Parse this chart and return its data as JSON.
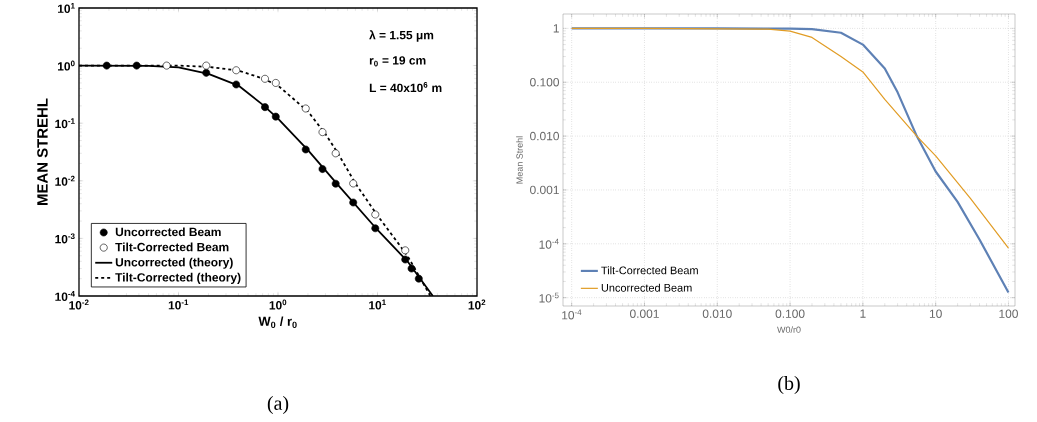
{
  "chart_data": [
    {
      "type": "scatter",
      "title": "(a)",
      "xlabel": "W$_{0}$ / r$_{0}$",
      "ylabel": "MEAN STREHL",
      "log": "xy",
      "grid": false,
      "legend": "bottom left",
      "xlim": [
        0.01,
        100
      ],
      "ylim": [
        0.0001,
        10
      ],
      "xticks": [
        {
          "value": 0.01,
          "label": "10$^{-2}$"
        },
        {
          "value": 0.1,
          "label": "10$^{-1}$"
        },
        {
          "value": 1,
          "label": "10$^{0}$"
        },
        {
          "value": 10,
          "label": "10$^{1}$"
        },
        {
          "value": 100,
          "label": "10$^{2}$"
        }
      ],
      "yticks": [
        {
          "value": 0.0001,
          "label": "10$^{-4}$"
        },
        {
          "value": 0.001,
          "label": "10$^{-3}$"
        },
        {
          "value": 0.01,
          "label": "10$^{-2}$"
        },
        {
          "value": 0.1,
          "label": "10$^{-1}$"
        },
        {
          "value": 1,
          "label": "10$^{0}$"
        },
        {
          "value": 10,
          "label": "10$^{1}$"
        }
      ],
      "annotations": [
        "λ = 1.55 μm",
        "r$_{0}$ = 19 cm",
        "L = 40x10$^{6}$ m"
      ],
      "series": [
        {
          "name": "Uncorrected Beam",
          "type": "scatter",
          "marker": "circle",
          "color": "#000000",
          "x": [
            0.019,
            0.038,
            0.19,
            0.38,
            0.74,
            0.95,
            1.9,
            2.8,
            3.8,
            5.7,
            9.5,
            19,
            22,
            26
          ],
          "values": [
            1,
            1,
            0.75,
            0.47,
            0.19,
            0.13,
            0.035,
            0.016,
            0.0089,
            0.0042,
            0.0015,
            0.00043,
            0.0003,
            0.0002
          ]
        },
        {
          "name": "Tilt-Corrected Beam",
          "type": "scatter",
          "marker": "circle",
          "color": "#ffffff",
          "x": [
            0.076,
            0.19,
            0.38,
            0.74,
            0.95,
            1.9,
            2.8,
            3.8,
            5.7,
            9.5,
            19
          ],
          "values": [
            1,
            1,
            0.83,
            0.59,
            0.5,
            0.18,
            0.07,
            0.03,
            0.009,
            0.0026,
            0.00062
          ]
        },
        {
          "name": "Uncorrected (theory)",
          "type": "line",
          "marker": "none",
          "line_style": "solid",
          "color": "#000000",
          "x": [
            0.01,
            0.05,
            0.1,
            0.2,
            0.4,
            0.7,
            1,
            2,
            4,
            10,
            20,
            36
          ],
          "values": [
            1,
            0.99,
            0.93,
            0.72,
            0.45,
            0.21,
            0.12,
            0.034,
            0.0085,
            0.0014,
            0.0004,
            0.0001
          ]
        },
        {
          "name": "Tilt-Corrected (theory)",
          "type": "line",
          "marker": "none",
          "line_style": "dashed",
          "color": "#000000",
          "x": [
            0.01,
            0.1,
            0.2,
            0.4,
            0.7,
            1,
            2,
            3,
            4,
            6,
            10,
            20,
            34
          ],
          "values": [
            1,
            1,
            0.95,
            0.82,
            0.6,
            0.45,
            0.16,
            0.065,
            0.03,
            0.009,
            0.0025,
            0.0005,
            0.0001
          ]
        }
      ]
    },
    {
      "type": "line",
      "title": "(b)",
      "xlabel": "W0/r0",
      "ylabel": "Mean Strehl",
      "log": "xy",
      "grid": true,
      "legend": "bottom left",
      "xlim": [
        7.6e-05,
        123
      ],
      "ylim": [
        7e-06,
        1.85
      ],
      "xticks": [
        {
          "value": 0.0001,
          "label": "10$^{-4}$"
        },
        0.001,
        {
          "value": 0.01,
          "label": "0.010"
        },
        {
          "value": 0.1,
          "label": "0.100"
        },
        1,
        10,
        100
      ],
      "yticks": [
        {
          "value": 1e-05,
          "label": "10$^{-5}$"
        },
        {
          "value": 0.0001,
          "label": "10$^{-4}$"
        },
        0.001,
        {
          "value": 0.01,
          "label": "0.010"
        },
        {
          "value": 0.1,
          "label": "0.100"
        },
        1
      ],
      "series": [
        {
          "name": "Tilt-Corrected Beam",
          "color": "#5e81b5",
          "x": [
            0.0001,
            0.01,
            0.1,
            0.2,
            0.5,
            1,
            2,
            3,
            5.5,
            10,
            20,
            40,
            100
          ],
          "values": [
            1,
            1,
            0.99,
            0.97,
            0.83,
            0.5,
            0.18,
            0.065,
            0.01,
            0.0022,
            0.0006,
            0.00012,
            1.25e-05
          ]
        },
        {
          "name": "Uncorrected Beam",
          "color": "#e19c24",
          "x": [
            0.0001,
            0.001,
            0.05,
            0.1,
            0.2,
            0.5,
            1,
            2,
            5.5,
            10,
            30,
            100
          ],
          "values": [
            1,
            1,
            0.97,
            0.89,
            0.68,
            0.3,
            0.155,
            0.048,
            0.01,
            0.0043,
            0.0007,
            8.3e-05
          ]
        }
      ]
    }
  ]
}
